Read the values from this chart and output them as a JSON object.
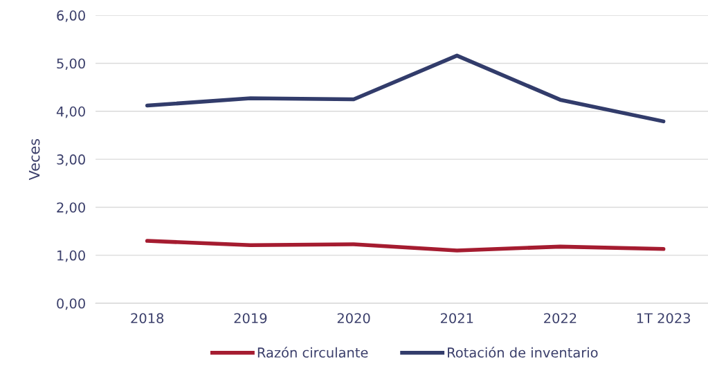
{
  "chart_data": {
    "type": "line",
    "ylabel": "Veces",
    "categories": [
      "2018",
      "2019",
      "2020",
      "2021",
      "2022",
      "1T 2023"
    ],
    "series": [
      {
        "name": "Razón circulante",
        "color": "#a51c30",
        "values": [
          1.3,
          1.21,
          1.23,
          1.1,
          1.18,
          1.13
        ]
      },
      {
        "name": "Rotación de inventario",
        "color": "#323c6b",
        "values": [
          4.12,
          4.27,
          4.25,
          5.16,
          4.24,
          3.79
        ]
      }
    ],
    "ylim": [
      0,
      6
    ],
    "yticks": [
      {
        "value": 0,
        "label": "0,00"
      },
      {
        "value": 1,
        "label": "1,00"
      },
      {
        "value": 2,
        "label": "2,00"
      },
      {
        "value": 3,
        "label": "3,00"
      },
      {
        "value": 4,
        "label": "4,00"
      },
      {
        "value": 5,
        "label": "5,00"
      },
      {
        "value": 6,
        "label": "6,00"
      }
    ],
    "grid": "y",
    "legend": "bottom",
    "marker": "none",
    "line_style": "solid"
  }
}
